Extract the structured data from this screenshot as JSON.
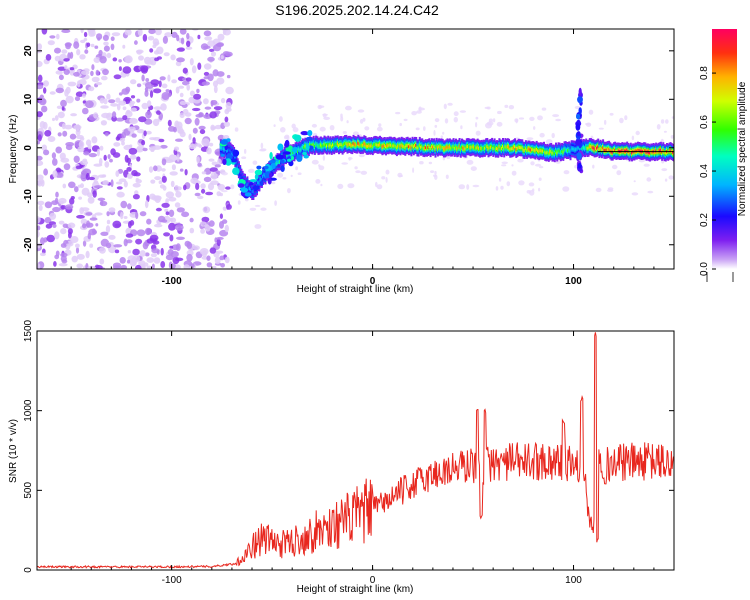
{
  "title": "S196.2025.202.14.24.C42",
  "chart_data": [
    {
      "type": "heatmap",
      "name": "spectrogram",
      "xlabel": "Height of straight line (km)",
      "ylabel": "Frequency (Hz)",
      "xlim": [
        -167,
        150
      ],
      "ylim": [
        -25,
        24.5
      ],
      "x_ticks": [
        -100,
        0,
        100
      ],
      "y_ticks": [
        -20,
        -10,
        0,
        10,
        20
      ],
      "colorbar": {
        "label": "Normalized spectral amplitude",
        "range": [
          0,
          0.98
        ],
        "ticks": [
          "0.0",
          "0.2",
          "0.4",
          "0.6",
          "0.8"
        ],
        "tick_values": [
          0,
          0.2,
          0.4,
          0.6,
          0.8
        ]
      },
      "noise_region_x": [
        -167,
        -75
      ],
      "ridge": {
        "x": [
          -75,
          -70,
          -65,
          -60,
          -55,
          -50,
          -45,
          -40,
          -35,
          -30,
          -20,
          -10,
          0,
          10,
          20,
          30,
          40,
          50,
          60,
          70,
          80,
          90,
          98,
          102,
          106,
          110,
          120,
          130,
          140,
          148
        ],
        "freq": [
          0,
          -1,
          -7,
          -9,
          -6,
          -4,
          -2,
          -1,
          0,
          0.5,
          0.5,
          0.7,
          0.5,
          0.3,
          0.3,
          0,
          0,
          0,
          0,
          0,
          -0.5,
          -1,
          -0.5,
          0,
          0,
          0,
          -0.7,
          -0.8,
          -0.8,
          -0.8
        ],
        "amplitude": [
          0.4,
          0.35,
          0.3,
          0.35,
          0.4,
          0.45,
          0.5,
          0.55,
          0.6,
          0.65,
          0.7,
          0.85,
          0.75,
          0.8,
          0.85,
          0.8,
          0.8,
          0.75,
          0.7,
          0.8,
          0.85,
          0.7,
          0.5,
          0.45,
          0.6,
          0.95,
          0.9,
          0.95,
          0.95,
          0.95
        ]
      },
      "spike": {
        "x": 103,
        "freq_range": [
          -5,
          12
        ]
      }
    },
    {
      "type": "line",
      "name": "snr",
      "xlabel": "Height of straight line (km)",
      "ylabel": "SNR (10 * v/v)",
      "xlim": [
        -167,
        150
      ],
      "ylim": [
        0,
        1500
      ],
      "x_ticks": [
        -100,
        0,
        100
      ],
      "y_ticks": [
        0,
        500,
        1000,
        1500
      ],
      "color": "#e8271e",
      "envelope": {
        "x": [
          -167,
          -140,
          -100,
          -80,
          -68,
          -62,
          -55,
          -45,
          -35,
          -25,
          -15,
          -5,
          5,
          15,
          25,
          35,
          45,
          50,
          55,
          60,
          70,
          80,
          85,
          90,
          95,
          100,
          105,
          108,
          110,
          111,
          112,
          115,
          120,
          130,
          140,
          150
        ],
        "y": [
          20,
          20,
          20,
          22,
          40,
          120,
          200,
          160,
          200,
          260,
          300,
          360,
          420,
          500,
          570,
          620,
          650,
          660,
          650,
          670,
          680,
          680,
          690,
          680,
          680,
          670,
          620,
          300,
          260,
          900,
          800,
          650,
          670,
          680,
          680,
          670
        ]
      },
      "spikes": [
        {
          "x": 52,
          "y": 1030
        },
        {
          "x": 54,
          "y": 360
        },
        {
          "x": 56,
          "y": 1020
        },
        {
          "x": 95,
          "y": 960
        },
        {
          "x": 104,
          "y": 1090
        },
        {
          "x": 111,
          "y": 1500
        },
        {
          "x": 112,
          "y": 200
        }
      ]
    }
  ]
}
